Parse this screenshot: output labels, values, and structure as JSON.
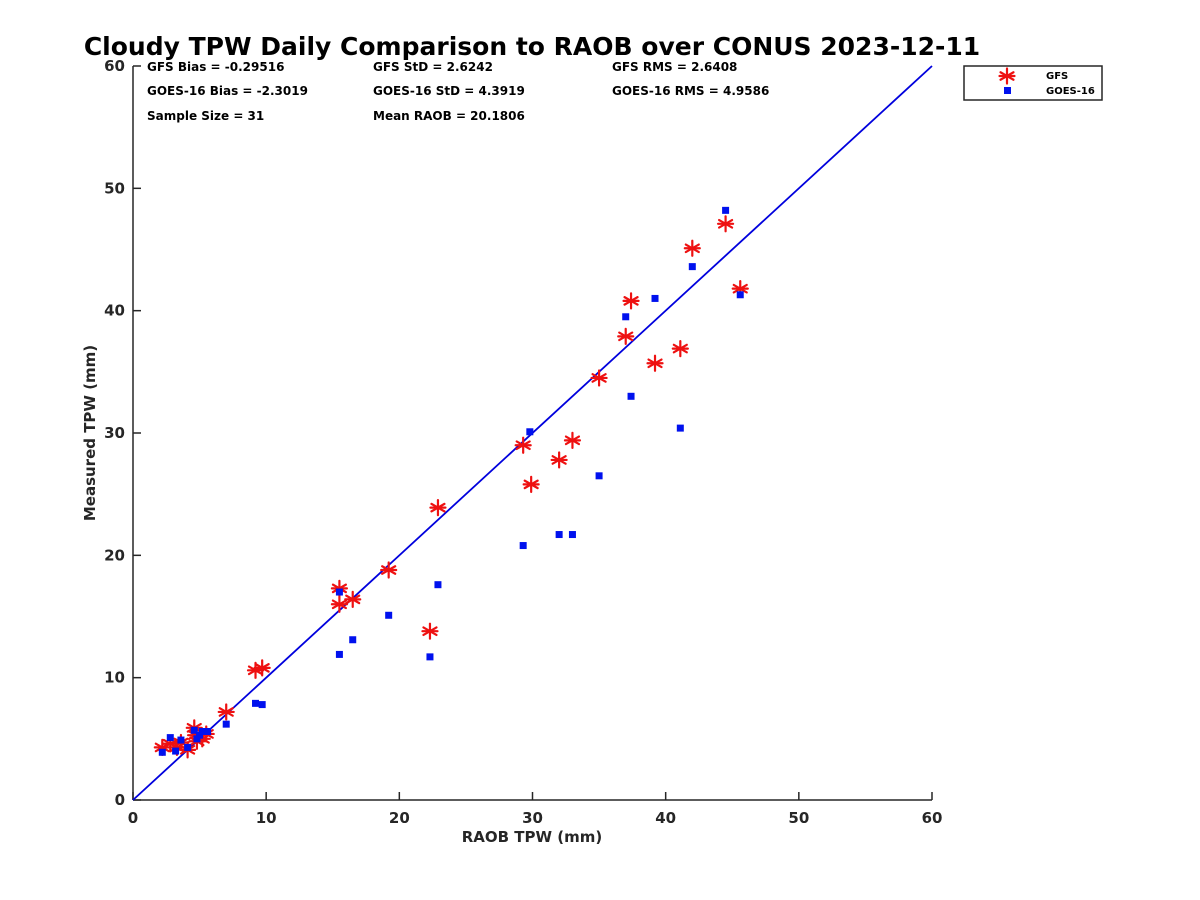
{
  "chart_data": {
    "type": "scatter",
    "title": "Cloudy TPW Daily Comparison to RAOB over CONUS 2023-12-11",
    "xlabel": "RAOB TPW (mm)",
    "ylabel": "Measured TPW (mm)",
    "xlim": [
      0,
      60
    ],
    "ylim": [
      0,
      60
    ],
    "xticks": [
      "0",
      "10",
      "20",
      "30",
      "40",
      "50",
      "60"
    ],
    "yticks": [
      "0",
      "10",
      "20",
      "30",
      "40",
      "50",
      "60"
    ],
    "grid": false,
    "legend_position": "top-right outside",
    "reference_line": {
      "type": "1:1",
      "color": "#0000dd"
    },
    "stats": {
      "gfs_bias": "GFS Bias = -0.29516",
      "goes_bias": "GOES-16 Bias = -2.3019",
      "sample_size": "Sample Size = 31",
      "gfs_std": "GFS StD = 2.6242",
      "goes_std": "GOES-16 StD = 4.3919",
      "mean_raob": "Mean RAOB = 20.1806",
      "gfs_rms": "GFS RMS = 2.6408",
      "goes_rms": "GOES-16 RMS = 4.9586"
    },
    "series": [
      {
        "name": "GFS",
        "marker": "asterisk",
        "color": "#ee1111",
        "points": [
          [
            2.2,
            4.3
          ],
          [
            2.8,
            4.6
          ],
          [
            3.3,
            4.3
          ],
          [
            3.6,
            4.7
          ],
          [
            4.1,
            4.1
          ],
          [
            4.6,
            5.9
          ],
          [
            4.8,
            4.8
          ],
          [
            5.2,
            5.0
          ],
          [
            5.5,
            5.4
          ],
          [
            7.0,
            7.2
          ],
          [
            9.2,
            10.6
          ],
          [
            9.7,
            10.8
          ],
          [
            15.5,
            17.3
          ],
          [
            15.5,
            16.0
          ],
          [
            16.5,
            16.4
          ],
          [
            19.2,
            18.8
          ],
          [
            22.3,
            13.8
          ],
          [
            22.9,
            23.9
          ],
          [
            29.3,
            29.0
          ],
          [
            29.9,
            25.8
          ],
          [
            32.0,
            27.8
          ],
          [
            33.0,
            29.4
          ],
          [
            35.0,
            34.5
          ],
          [
            37.0,
            37.9
          ],
          [
            37.4,
            40.8
          ],
          [
            39.2,
            35.7
          ],
          [
            41.1,
            36.9
          ],
          [
            42.0,
            45.1
          ],
          [
            44.5,
            47.1
          ],
          [
            45.6,
            41.8
          ],
          [
            4.7,
            5.3
          ]
        ]
      },
      {
        "name": "GOES-16",
        "marker": "square",
        "color": "#0011ee",
        "points": [
          [
            2.2,
            3.9
          ],
          [
            2.8,
            5.1
          ],
          [
            3.2,
            4.0
          ],
          [
            3.6,
            4.9
          ],
          [
            4.1,
            4.3
          ],
          [
            4.6,
            5.7
          ],
          [
            5.0,
            5.3
          ],
          [
            5.2,
            5.6
          ],
          [
            5.6,
            5.6
          ],
          [
            7.0,
            6.2
          ],
          [
            9.2,
            7.9
          ],
          [
            9.7,
            7.8
          ],
          [
            15.5,
            17.0
          ],
          [
            15.5,
            11.9
          ],
          [
            16.5,
            13.1
          ],
          [
            19.2,
            15.1
          ],
          [
            22.3,
            11.7
          ],
          [
            22.9,
            17.6
          ],
          [
            29.3,
            20.8
          ],
          [
            29.8,
            30.1
          ],
          [
            32.0,
            21.7
          ],
          [
            33.0,
            21.7
          ],
          [
            35.0,
            26.5
          ],
          [
            37.0,
            39.5
          ],
          [
            37.4,
            33.0
          ],
          [
            39.2,
            41.0
          ],
          [
            41.1,
            30.4
          ],
          [
            42.0,
            43.6
          ],
          [
            44.5,
            48.2
          ],
          [
            45.6,
            41.3
          ],
          [
            4.8,
            5.0
          ]
        ]
      }
    ]
  }
}
